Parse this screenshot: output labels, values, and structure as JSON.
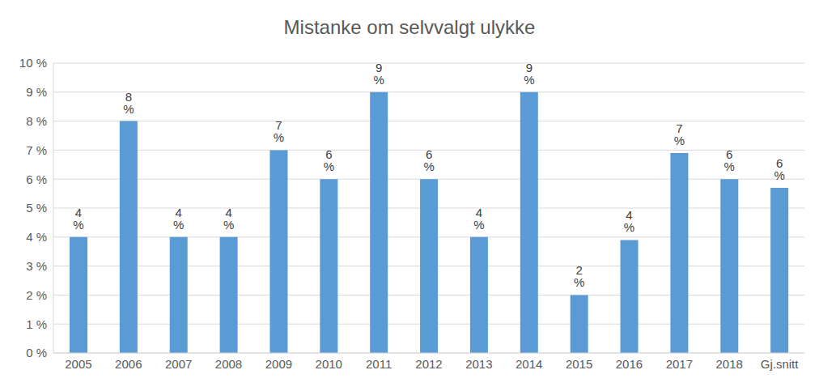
{
  "chart_data": {
    "type": "bar",
    "title": "Mistanke om selvvalgt ulykke",
    "categories": [
      "2005",
      "2006",
      "2007",
      "2008",
      "2009",
      "2010",
      "2011",
      "2012",
      "2013",
      "2014",
      "2015",
      "2016",
      "2017",
      "2018",
      "Gj.snitt"
    ],
    "values": [
      4,
      8,
      4,
      4,
      7,
      6,
      9,
      6,
      4,
      9,
      2,
      3.9,
      6.9,
      6,
      5.7
    ],
    "value_labels": [
      "4 %",
      "8 %",
      "4 %",
      "4 %",
      "7 %",
      "6 %",
      "9 %",
      "6 %",
      "4 %",
      "9 %",
      "2 %",
      "4 %",
      "7 %",
      "6 %",
      "6 %"
    ],
    "color": "#5b9bd5",
    "ylim": [
      0,
      10
    ],
    "yticks": [
      {
        "value": 0,
        "label": "0 %"
      },
      {
        "value": 1,
        "label": "1 %"
      },
      {
        "value": 2,
        "label": "2 %"
      },
      {
        "value": 3,
        "label": "3 %"
      },
      {
        "value": 4,
        "label": "4 %"
      },
      {
        "value": 5,
        "label": "5 %"
      },
      {
        "value": 6,
        "label": "6 %"
      },
      {
        "value": 7,
        "label": "7 %"
      },
      {
        "value": 8,
        "label": "8 %"
      },
      {
        "value": 9,
        "label": "9 %"
      },
      {
        "value": 10,
        "label": "10 %"
      }
    ],
    "grid": true,
    "data_labels": true
  }
}
